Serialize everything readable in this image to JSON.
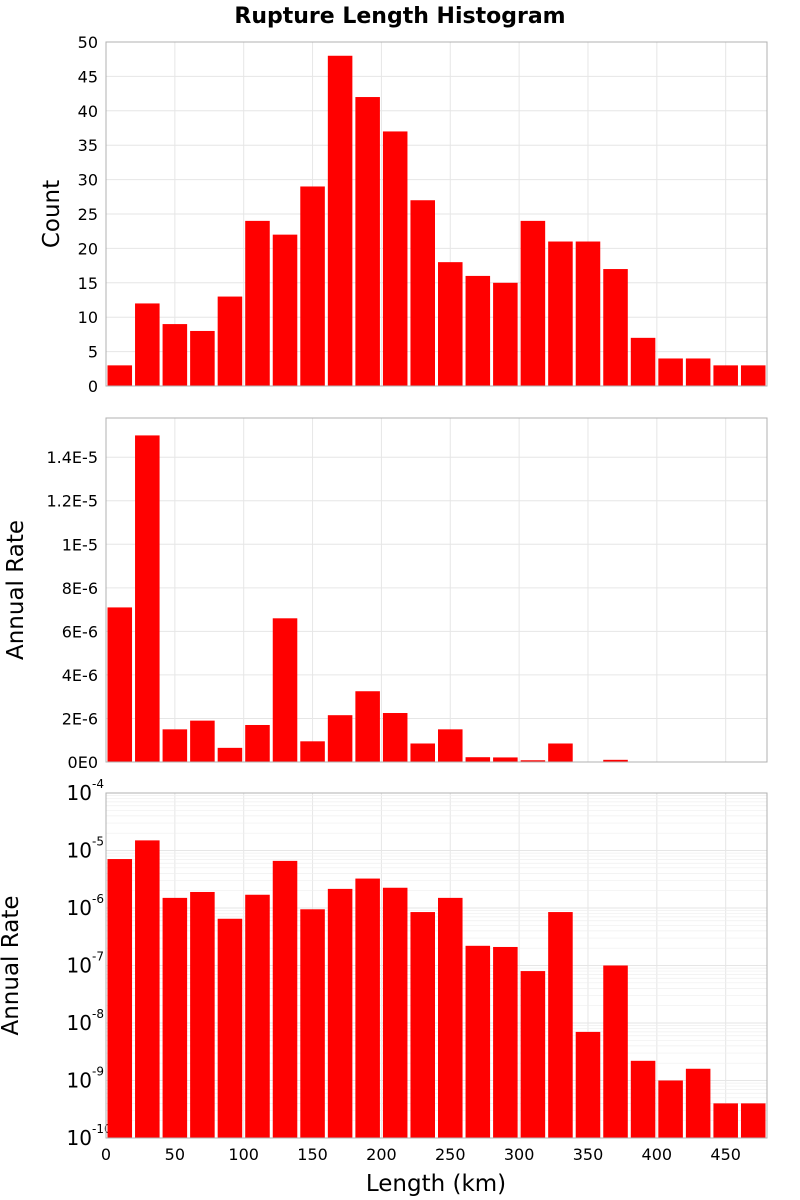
{
  "title": "Rupture Length Histogram",
  "colors": {
    "bar": "#ff0000",
    "grid": "#e6e6e6",
    "frame": "#b0b0b0"
  },
  "chart_data": [
    {
      "type": "bar",
      "ylabel": "Count",
      "x": [
        10,
        30,
        50,
        70,
        90,
        110,
        130,
        150,
        170,
        190,
        210,
        230,
        250,
        270,
        290,
        310,
        330,
        350,
        370,
        390,
        410,
        430,
        450,
        470
      ],
      "values": [
        3,
        12,
        9,
        8,
        13,
        24,
        22,
        29,
        48,
        42,
        37,
        27,
        18,
        16,
        15,
        24,
        21,
        21,
        17,
        7,
        4,
        4,
        3,
        3
      ],
      "xlim": [
        0,
        480
      ],
      "ylim": [
        0,
        50
      ],
      "yticks": [
        0,
        5,
        10,
        15,
        20,
        25,
        30,
        35,
        40,
        45,
        50
      ],
      "ytick_labels": [
        "0",
        "5",
        "10",
        "15",
        "20",
        "25",
        "30",
        "35",
        "40",
        "45",
        "50"
      ],
      "grid": true
    },
    {
      "type": "bar",
      "ylabel": "Annual Rate",
      "x": [
        10,
        30,
        50,
        70,
        90,
        110,
        130,
        150,
        170,
        190,
        210,
        230,
        250,
        270,
        290,
        310,
        330,
        350,
        370,
        390,
        410,
        430,
        450,
        470
      ],
      "values": [
        7.1e-06,
        1.5e-05,
        1.5e-06,
        1.9e-06,
        6.5e-07,
        1.7e-06,
        6.6e-06,
        9.5e-07,
        2.15e-06,
        3.25e-06,
        2.25e-06,
        8.5e-07,
        1.5e-06,
        2.2e-07,
        2.1e-07,
        8e-08,
        8.5e-07,
        7e-09,
        1e-07,
        2.2e-09,
        1e-09,
        1.6e-09,
        4e-10,
        4e-10
      ],
      "xlim": [
        0,
        480
      ],
      "ylim": [
        0,
        1.58e-05
      ],
      "yticks": [
        0,
        2e-06,
        4e-06,
        6e-06,
        8e-06,
        1e-05,
        1.2e-05,
        1.4e-05
      ],
      "ytick_labels": [
        "0E0",
        "2E-6",
        "4E-6",
        "6E-6",
        "8E-6",
        "1E-5",
        "1.2E-5",
        "1.4E-5"
      ],
      "grid": true
    },
    {
      "type": "bar",
      "ylabel": "Annual Rate",
      "xlabel": "Length (km)",
      "yscale": "log",
      "x": [
        10,
        30,
        50,
        70,
        90,
        110,
        130,
        150,
        170,
        190,
        210,
        230,
        250,
        270,
        290,
        310,
        330,
        350,
        370,
        390,
        410,
        430,
        450,
        470
      ],
      "values": [
        7.1e-06,
        1.5e-05,
        1.5e-06,
        1.9e-06,
        6.5e-07,
        1.7e-06,
        6.6e-06,
        9.5e-07,
        2.15e-06,
        3.25e-06,
        2.25e-06,
        8.5e-07,
        1.5e-06,
        2.2e-07,
        2.1e-07,
        8e-08,
        8.5e-07,
        7e-09,
        1e-07,
        2.2e-09,
        1e-09,
        1.6e-09,
        4e-10,
        4e-10
      ],
      "xlim": [
        0,
        480
      ],
      "ylim": [
        1e-10,
        0.0001
      ],
      "ytick_bases": [
        "10",
        "10",
        "10",
        "10",
        "10",
        "10",
        "10"
      ],
      "ytick_exponents": [
        "-10",
        "-9",
        "-8",
        "-7",
        "-6",
        "-5",
        "-4"
      ],
      "xticks": [
        0,
        50,
        100,
        150,
        200,
        250,
        300,
        350,
        400,
        450
      ],
      "xtick_labels": [
        "0",
        "50",
        "100",
        "150",
        "200",
        "250",
        "300",
        "350",
        "400",
        "450"
      ],
      "grid": true
    }
  ]
}
